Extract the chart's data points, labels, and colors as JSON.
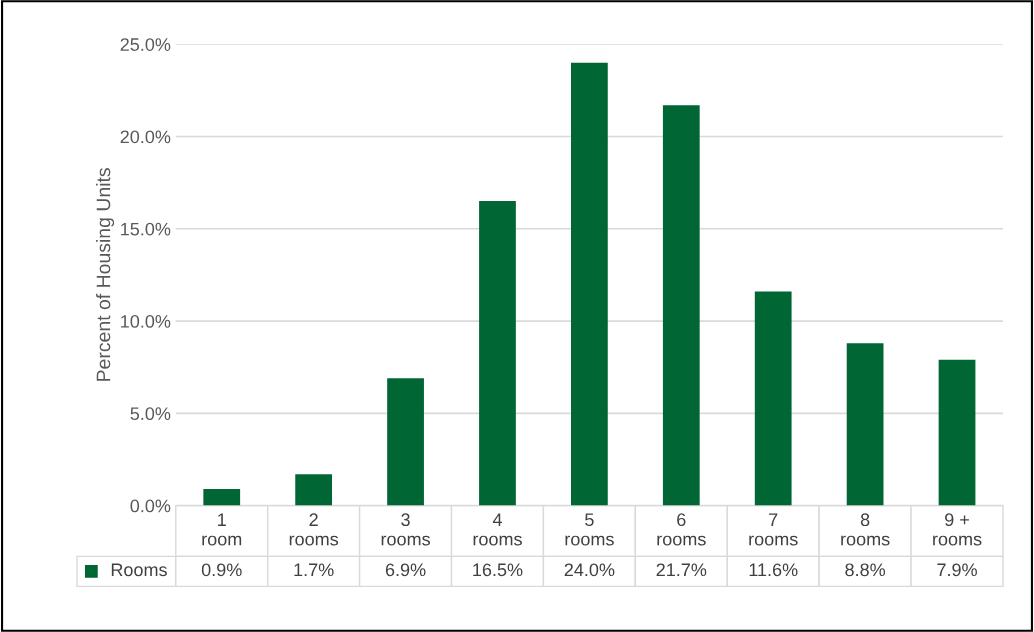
{
  "chart_data": {
    "type": "bar",
    "ylabel": "Percent of Housing Units",
    "categories": [
      "1\nroom",
      "2\nrooms",
      "3\nrooms",
      "4\nrooms",
      "5\nrooms",
      "6\nrooms",
      "7\nrooms",
      "8\nrooms",
      "9 +\nrooms"
    ],
    "series": [
      {
        "name": "Rooms",
        "color": "#006633",
        "values": [
          0.9,
          1.7,
          6.9,
          16.5,
          24.0,
          21.7,
          11.6,
          8.8,
          7.9
        ],
        "value_labels": [
          "0.9%",
          "1.7%",
          "6.9%",
          "16.5%",
          "24.0%",
          "21.7%",
          "11.6%",
          "8.8%",
          "7.9%"
        ]
      }
    ],
    "ylim": [
      0,
      25
    ],
    "yticks": [
      {
        "value": 0,
        "label": "0.0%"
      },
      {
        "value": 5,
        "label": "5.0%"
      },
      {
        "value": 10,
        "label": "10.0%"
      },
      {
        "value": 15,
        "label": "15.0%"
      },
      {
        "value": 20,
        "label": "20.0%"
      },
      {
        "value": 25,
        "label": "25.0%"
      }
    ],
    "grid": "y",
    "legend": "bottom"
  }
}
